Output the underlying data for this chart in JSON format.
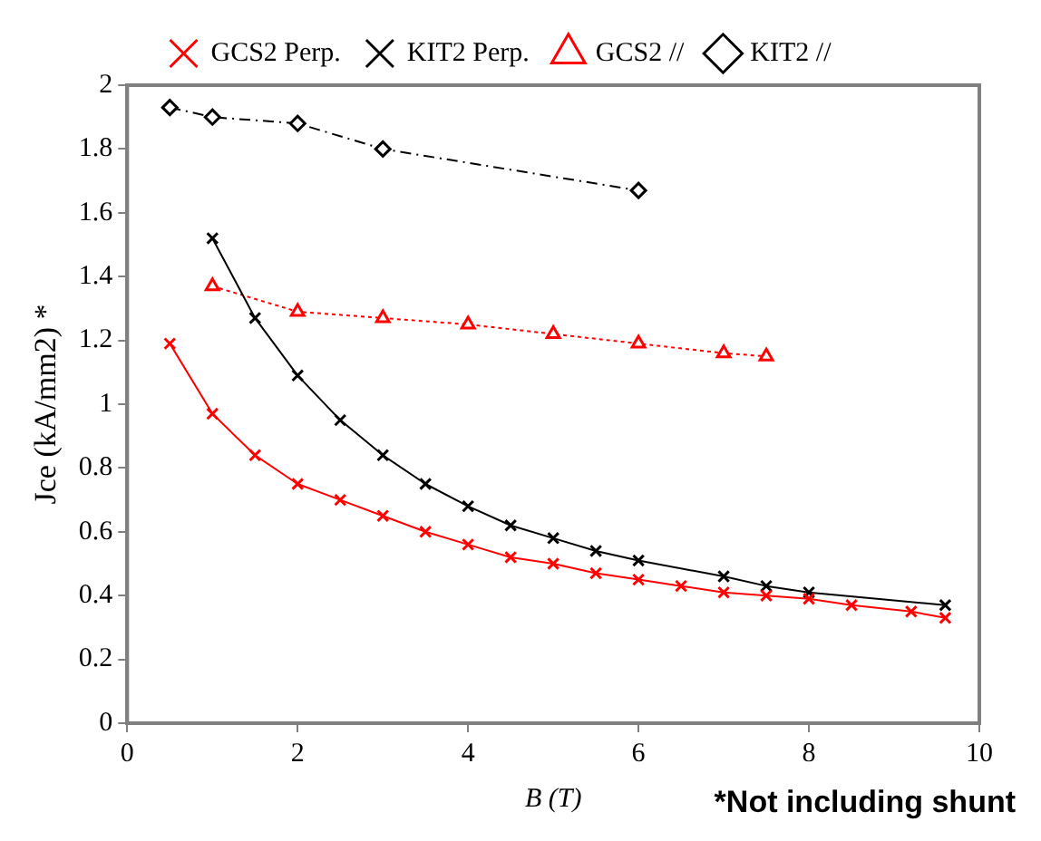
{
  "chart_data": {
    "type": "line",
    "xlabel": "B (T)",
    "ylabel": "Jce (kA/mm2) *",
    "annotations": [
      "*Not including shunt"
    ],
    "xlim": [
      0,
      10
    ],
    "xticks": [
      0,
      2,
      4,
      6,
      8,
      10
    ],
    "ylim": [
      0,
      2
    ],
    "yticks": [
      0,
      0.2,
      0.4,
      0.6,
      0.8,
      1,
      1.2,
      1.4,
      1.6,
      1.8,
      2
    ],
    "grid": false,
    "legend": "top",
    "series": [
      {
        "name": "GCS2 Perp.",
        "color": "#ff0000",
        "marker": "cross",
        "line_style": "solid",
        "x": [
          0.5,
          1,
          1.5,
          2,
          2.5,
          3,
          3.5,
          4,
          4.5,
          5,
          5.5,
          6,
          6.5,
          7,
          7.5,
          8,
          8.5,
          9.2,
          9.6
        ],
        "values": [
          1.19,
          0.97,
          0.84,
          0.75,
          0.7,
          0.65,
          0.6,
          0.56,
          0.52,
          0.5,
          0.47,
          0.45,
          0.43,
          0.41,
          0.4,
          0.39,
          0.37,
          0.35,
          0.33
        ]
      },
      {
        "name": "KIT2 Perp.",
        "color": "#000000",
        "marker": "cross",
        "line_style": "solid",
        "x": [
          1,
          1.5,
          2,
          2.5,
          3,
          3.5,
          4,
          4.5,
          5,
          5.5,
          6,
          7,
          7.5,
          8,
          9.6
        ],
        "values": [
          1.52,
          1.27,
          1.09,
          0.95,
          0.84,
          0.75,
          0.68,
          0.62,
          0.58,
          0.54,
          0.51,
          0.46,
          0.43,
          0.41,
          0.37
        ]
      },
      {
        "name": "GCS2 //",
        "color": "#ff0000",
        "marker": "triangle",
        "line_style": "dotted",
        "x": [
          1,
          2,
          3,
          4,
          5,
          6,
          7,
          7.5
        ],
        "values": [
          1.37,
          1.29,
          1.27,
          1.25,
          1.22,
          1.19,
          1.16,
          1.15
        ]
      },
      {
        "name": "KIT2 //",
        "color": "#000000",
        "marker": "diamond",
        "line_style": "dashed",
        "x": [
          0.5,
          1,
          2,
          3,
          6
        ],
        "values": [
          1.93,
          1.9,
          1.88,
          1.8,
          1.67
        ]
      }
    ]
  }
}
